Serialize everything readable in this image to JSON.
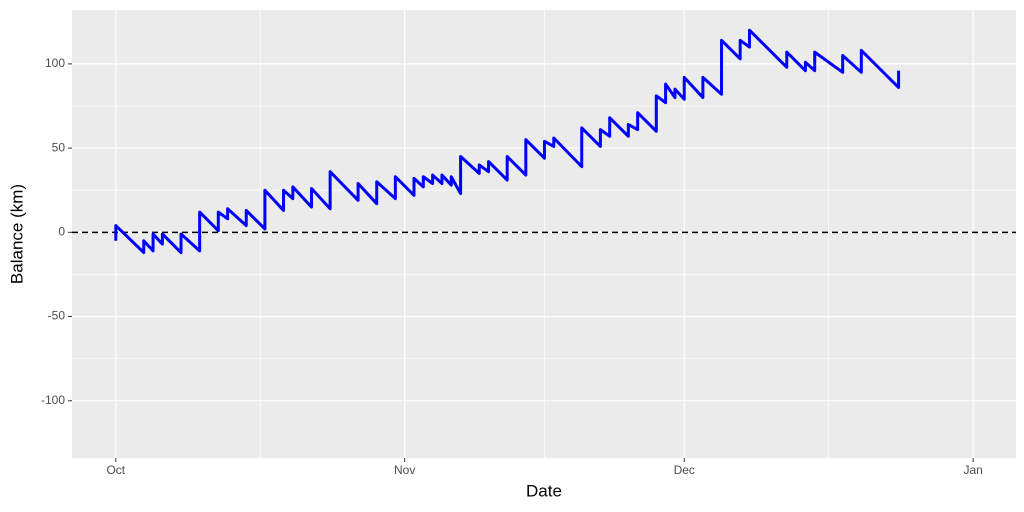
{
  "chart_data": {
    "type": "line",
    "x_label": "Date",
    "y_label": "Balance (km)",
    "x": [
      0,
      0,
      3,
      3,
      4,
      4,
      5,
      5,
      7,
      7,
      9,
      9,
      11,
      11,
      12,
      12,
      14,
      14,
      16,
      16,
      18,
      18,
      19,
      19,
      21,
      21,
      23,
      23,
      26,
      26,
      28,
      28,
      30,
      30,
      32,
      32,
      33,
      33,
      34,
      34,
      35,
      35,
      36,
      36,
      37,
      37,
      39,
      39,
      40,
      40,
      42,
      42,
      44,
      44,
      46,
      46,
      47,
      47,
      50,
      50,
      52,
      52,
      53,
      53,
      55,
      55,
      56,
      56,
      58,
      58,
      59,
      59,
      60,
      60,
      61,
      61,
      63,
      63,
      65,
      65,
      67,
      67,
      68,
      68,
      72,
      72,
      74,
      74,
      75,
      75,
      78,
      78,
      80,
      80,
      84,
      84
    ],
    "series": [
      {
        "name": "Balance",
        "color": "#0000ff",
        "values": [
          -5,
          4,
          -12,
          -5,
          -11,
          -1,
          -7,
          -1,
          -12,
          -1,
          -11,
          12,
          1,
          12,
          8,
          14,
          4,
          13,
          2,
          25,
          13,
          25,
          20,
          27,
          15,
          26,
          14,
          36,
          19,
          29,
          17,
          30,
          20,
          33,
          22,
          32,
          27,
          33,
          29,
          34,
          29,
          34,
          28,
          33,
          23,
          45,
          35,
          40,
          36,
          42,
          31,
          45,
          34,
          55,
          44,
          54,
          51,
          56,
          39,
          62,
          51,
          61,
          57,
          68,
          57,
          64,
          61,
          71,
          60,
          81,
          77,
          88,
          80,
          85,
          79,
          92,
          80,
          92,
          82,
          114,
          103,
          114,
          110,
          120,
          98,
          107,
          96,
          101,
          96,
          107,
          95,
          105,
          95,
          108,
          86,
          96
        ]
      }
    ],
    "xlim": [
      -4.7,
      96.6
    ],
    "ylim": [
      -134,
      132
    ],
    "xticks": [
      {
        "value": 0,
        "label": "Oct"
      },
      {
        "value": 31,
        "label": "Nov"
      },
      {
        "value": 61,
        "label": "Dec"
      },
      {
        "value": 92,
        "label": "Jan"
      }
    ],
    "yticks": [
      -100,
      -50,
      0,
      50,
      100
    ],
    "hline": 0,
    "grid": true
  }
}
